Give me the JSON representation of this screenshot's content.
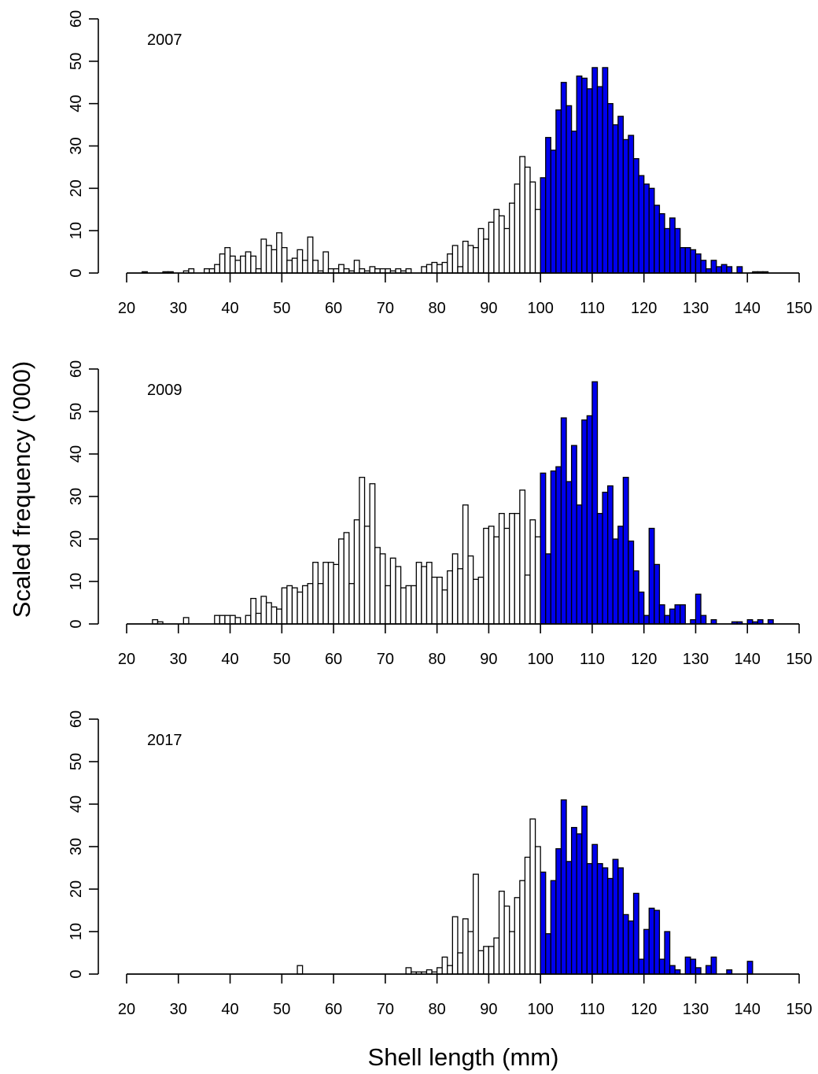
{
  "chart_data": {
    "type": "bar",
    "xlabel": "Shell length (mm)",
    "ylabel": "Scaled frequency ('000)",
    "xlim": [
      20,
      150
    ],
    "ylim": [
      0,
      60
    ],
    "bin_width": 1,
    "highlight_from": 100,
    "colors": {
      "below": "#ffffff",
      "above": "#0000ee",
      "stroke": "#000000"
    },
    "x_ticks": [
      20,
      30,
      40,
      50,
      60,
      70,
      80,
      90,
      100,
      110,
      120,
      130,
      140,
      150
    ],
    "y_ticks": [
      0,
      10,
      20,
      30,
      40,
      50,
      60
    ],
    "x_start": 20,
    "panels": [
      {
        "label": "2007",
        "values": [
          0,
          0,
          0,
          0.3,
          0,
          0,
          0,
          0.3,
          0.3,
          0,
          0,
          0.5,
          1,
          0,
          0,
          1,
          1,
          2,
          4.5,
          6,
          4,
          3,
          4,
          5,
          4,
          1,
          8,
          6.5,
          5.5,
          9.5,
          6,
          3,
          3.5,
          5.5,
          3,
          8.5,
          3,
          0.5,
          5,
          1,
          1,
          2,
          1,
          0.5,
          3,
          1,
          0.5,
          1.5,
          1,
          1,
          1,
          0.5,
          1,
          0.5,
          1,
          0,
          0,
          1.5,
          2,
          2.5,
          2,
          2.5,
          4.5,
          6.5,
          1.5,
          7.5,
          6.5,
          6,
          10.5,
          8,
          12,
          15,
          13.5,
          10.5,
          16.5,
          21,
          27.5,
          25,
          21.5,
          15,
          22.5,
          32,
          29,
          38.5,
          45,
          39.5,
          33.5,
          46.5,
          46,
          43.5,
          48.5,
          44,
          48.5,
          40,
          35,
          37,
          31.5,
          32.5,
          27,
          23,
          21,
          20,
          16,
          14,
          10.5,
          13,
          10.5,
          6,
          6,
          5.5,
          4.5,
          3,
          1,
          3,
          1.5,
          2,
          1.5,
          0,
          1.5,
          0,
          0,
          0.3,
          0.3,
          0.3,
          0,
          0,
          0,
          0,
          0,
          0,
          0,
          0,
          0,
          0,
          0,
          0,
          0
        ]
      },
      {
        "label": "2009",
        "values": [
          0,
          0,
          0,
          0,
          0,
          1,
          0.5,
          0,
          0,
          0,
          0,
          1.5,
          0,
          0,
          0,
          0,
          0,
          2,
          2,
          2,
          2,
          1.5,
          0,
          2,
          6,
          2.5,
          6.5,
          5,
          4,
          3.5,
          8.5,
          9,
          8.5,
          7.5,
          9,
          9.5,
          14.5,
          9.5,
          14.5,
          14.5,
          14,
          20,
          21.5,
          9.5,
          24.5,
          34.5,
          23,
          33,
          18,
          16.5,
          9,
          15.5,
          13.5,
          8.5,
          9,
          9,
          14.5,
          13.5,
          14.5,
          11,
          11,
          8,
          12.5,
          16.5,
          13,
          28,
          16,
          10.5,
          11,
          22.5,
          23,
          20.5,
          26,
          22.5,
          26,
          26,
          31.5,
          11.5,
          24.5,
          20.5,
          35.5,
          16.5,
          36,
          37,
          48.5,
          33.5,
          42,
          28,
          48,
          49,
          57,
          26,
          31,
          32.5,
          20,
          23,
          34.5,
          19.5,
          12.5,
          7.5,
          2,
          22.5,
          14,
          4.5,
          2,
          3.5,
          4.5,
          4.5,
          0,
          1,
          7,
          2,
          0,
          1,
          0,
          0,
          0,
          0.5,
          0.5,
          0,
          1,
          0.5,
          1,
          0,
          1,
          0,
          0,
          0,
          0,
          0,
          0,
          0,
          0,
          0
        ]
      },
      {
        "label": "2017",
        "values": [
          0,
          0,
          0,
          0,
          0,
          0,
          0,
          0,
          0,
          0,
          0,
          0,
          0,
          0,
          0,
          0,
          0,
          0,
          0,
          0,
          0,
          0,
          0,
          0,
          0,
          0,
          0,
          0,
          0,
          0,
          0,
          0,
          0,
          2,
          0,
          0,
          0,
          0,
          0,
          0,
          0,
          0,
          0,
          0,
          0,
          0,
          0,
          0,
          0,
          0,
          0,
          0,
          0,
          0,
          1.5,
          0.5,
          0.5,
          0.5,
          1,
          0.5,
          1.5,
          4,
          2,
          13.5,
          5,
          13,
          10,
          23.5,
          5.5,
          6.5,
          6.5,
          8.5,
          19.5,
          16,
          10,
          18,
          22,
          27.5,
          36.5,
          30,
          24,
          9.5,
          22,
          29.5,
          41,
          26.5,
          34.5,
          33,
          39.5,
          26,
          30.5,
          26,
          25,
          22.5,
          27,
          25,
          14,
          12.5,
          19,
          3.5,
          10.5,
          15.5,
          15,
          3.5,
          10,
          2,
          1,
          0,
          4,
          3.5,
          1.5,
          0,
          2,
          4,
          0,
          0,
          1,
          0,
          0,
          0,
          3,
          0,
          0,
          0,
          0,
          0,
          0,
          0,
          0,
          0,
          0
        ]
      }
    ]
  }
}
